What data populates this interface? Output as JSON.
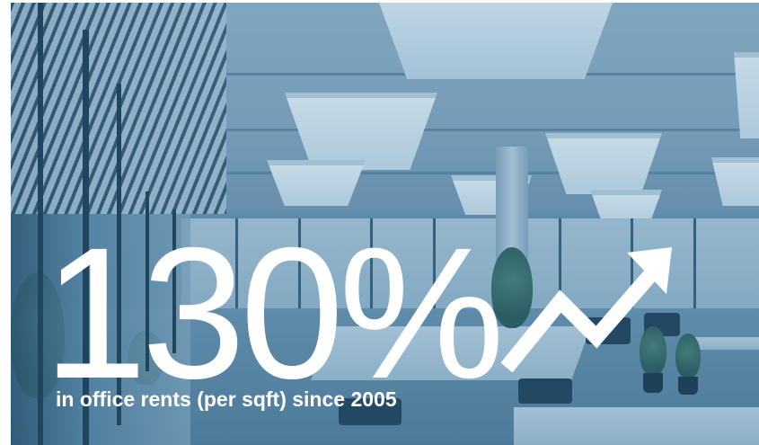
{
  "headline": {
    "value": "130%",
    "caption": "in office rents (per sqft) since 2005"
  },
  "icons": {
    "trend": "trend-up-arrow-icon"
  },
  "colors": {
    "text": "#ffffff",
    "photo_tint": "#4f86aa"
  }
}
